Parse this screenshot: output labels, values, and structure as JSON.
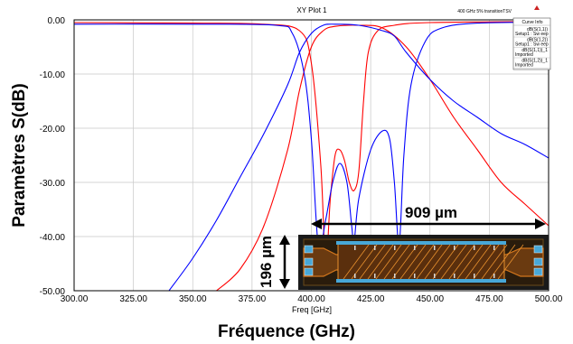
{
  "chart_data": {
    "type": "line",
    "title": "XY Plot 1",
    "subtitle": "400 GHz 5% transitionTSV",
    "xlabel_small": "Freq [GHz]",
    "xlabel": "Fréquence (GHz)",
    "ylabel": "Paramètres S(dB)",
    "xlim": [
      300,
      500
    ],
    "ylim": [
      -50,
      0
    ],
    "x_ticks": [
      "300.00",
      "325.00",
      "350.00",
      "375.00",
      "400.00",
      "425.00",
      "450.00",
      "475.00",
      "500.00"
    ],
    "y_ticks": [
      "0.00",
      "-10.00",
      "-20.00",
      "-30.00",
      "-40.00",
      "-50.00"
    ],
    "grid": true,
    "legend": {
      "header": "Curve Info",
      "position": "top-right",
      "entries": [
        {
          "line1": "dB(S(1,1))",
          "line2": "Setup1 : Sw eep"
        },
        {
          "line1": "dB(S(1,2))",
          "line2": "Setup1 : Sw eep"
        },
        {
          "line1": "dB(S(1,1))_1",
          "line2": "Imported"
        },
        {
          "line1": "dB(S(1,2))_1",
          "line2": "Imported"
        }
      ]
    },
    "series": [
      {
        "color": "#ff0000",
        "points": [
          [
            300,
            -0.5
          ],
          [
            350,
            -0.6
          ],
          [
            380,
            -0.8
          ],
          [
            395,
            -2
          ],
          [
            400,
            -8
          ],
          [
            404,
            -27
          ],
          [
            406,
            -45
          ],
          [
            408,
            -33
          ],
          [
            410,
            -25
          ],
          [
            412,
            -24
          ],
          [
            414,
            -26
          ],
          [
            416,
            -30
          ],
          [
            418,
            -31.5
          ],
          [
            420,
            -28
          ],
          [
            422,
            -15
          ],
          [
            424,
            -6
          ],
          [
            428,
            -2
          ],
          [
            435,
            -1
          ],
          [
            450,
            -0.5
          ],
          [
            500,
            -0.3
          ]
        ]
      },
      {
        "color": "#ff0000",
        "points": [
          [
            360,
            -50
          ],
          [
            370,
            -46
          ],
          [
            380,
            -38
          ],
          [
            390,
            -24
          ],
          [
            395,
            -13
          ],
          [
            400,
            -5
          ],
          [
            405,
            -2
          ],
          [
            410,
            -1.2
          ],
          [
            420,
            -1
          ],
          [
            430,
            -1.5
          ],
          [
            440,
            -5
          ],
          [
            450,
            -11
          ],
          [
            460,
            -18
          ],
          [
            470,
            -24
          ],
          [
            480,
            -30
          ],
          [
            490,
            -34
          ],
          [
            500,
            -38
          ]
        ]
      },
      {
        "color": "#0000ff",
        "points": [
          [
            300,
            -0.8
          ],
          [
            350,
            -0.8
          ],
          [
            385,
            -1
          ],
          [
            392,
            -2.5
          ],
          [
            397,
            -10
          ],
          [
            400,
            -22
          ],
          [
            403,
            -42
          ],
          [
            406,
            -37
          ],
          [
            409,
            -30
          ],
          [
            412,
            -26.5
          ],
          [
            415,
            -30
          ],
          [
            417,
            -38
          ],
          [
            418,
            -41
          ],
          [
            420,
            -33
          ],
          [
            425,
            -24
          ],
          [
            430,
            -20.5
          ],
          [
            433,
            -22
          ],
          [
            435,
            -30
          ],
          [
            437,
            -41.5
          ],
          [
            439,
            -25
          ],
          [
            442,
            -12
          ],
          [
            448,
            -4
          ],
          [
            455,
            -1.5
          ],
          [
            470,
            -0.6
          ],
          [
            500,
            -0.4
          ]
        ]
      },
      {
        "color": "#0000ff",
        "points": [
          [
            340,
            -50
          ],
          [
            350,
            -44
          ],
          [
            360,
            -37
          ],
          [
            370,
            -29
          ],
          [
            380,
            -21
          ],
          [
            390,
            -12
          ],
          [
            395,
            -6
          ],
          [
            400,
            -2.5
          ],
          [
            405,
            -1
          ],
          [
            410,
            -0.8
          ],
          [
            420,
            -1
          ],
          [
            430,
            -2
          ],
          [
            435,
            -3
          ],
          [
            440,
            -6
          ],
          [
            450,
            -11
          ],
          [
            460,
            -15
          ],
          [
            470,
            -18
          ],
          [
            480,
            -21
          ],
          [
            490,
            -23
          ],
          [
            500,
            -25.5
          ]
        ]
      }
    ],
    "annotations": {
      "length": "909 µm",
      "width": "196 µm"
    }
  }
}
